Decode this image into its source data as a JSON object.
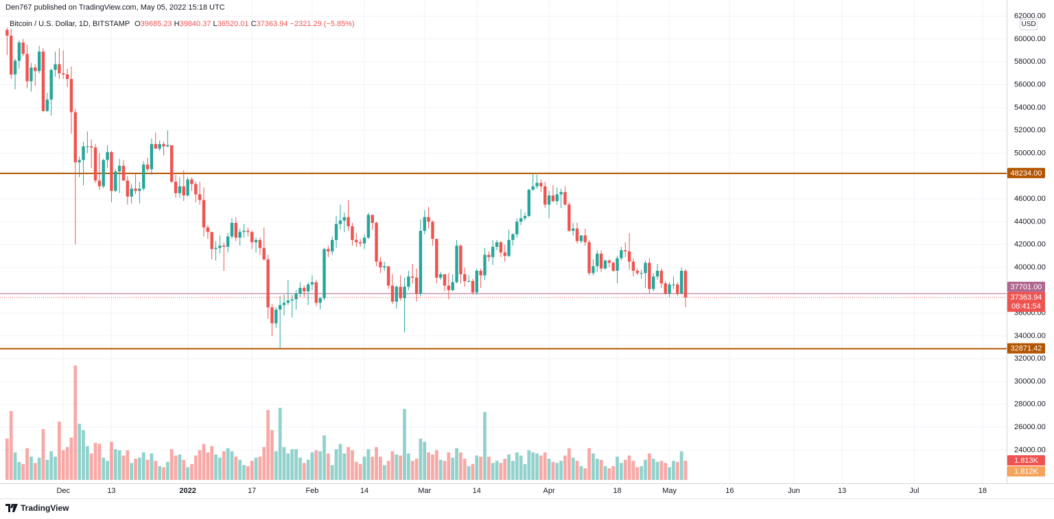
{
  "header": {
    "published": "Den767 published on TradingView.com, May 05, 2022 15:18 UTC"
  },
  "chart_data": {
    "type": "candlestick",
    "symbol": "Bitcoin / U.S. Dollar, 1D, BITSTAMP",
    "legend_letters": {
      "open": "O",
      "high": "H",
      "low": "L",
      "close": "C"
    },
    "change": {
      "value": -2321.29,
      "label": "−2321.29"
    },
    "change_percent": {
      "value": -5.85,
      "label": "(−5.85%)"
    },
    "currency": "USD",
    "countdown": "08:41:54",
    "up_color": "#26a69a",
    "down_color": "#ef5350",
    "grid": true,
    "open": [
      60800,
      60300,
      56900,
      58100,
      59700,
      58700,
      56300,
      57500,
      57200,
      58900,
      53700,
      54700,
      57300,
      57800,
      57000,
      56900,
      56500,
      53600,
      49200,
      49400,
      50600,
      50600,
      50500,
      47600,
      47100,
      49400,
      50100,
      46700,
      48400,
      48900,
      47600,
      46200,
      46900,
      46700,
      46900,
      49000,
      48600,
      50800,
      50400,
      50800,
      50600,
      50700,
      47500,
      46500,
      47100,
      46300,
      47700,
      47300,
      46400,
      45900,
      43500,
      43100,
      41600,
      41700,
      41900,
      41800,
      42700,
      43900,
      42600,
      43100,
      43200,
      43100,
      42200,
      42400,
      41700,
      40700,
      36500,
      35100,
      36300,
      36700,
      36900,
      37100,
      37200,
      37700,
      38200,
      37900,
      38500,
      38700,
      36900,
      37300,
      41600,
      41400,
      42400,
      43800,
      44100,
      44400,
      43600,
      42400,
      42200,
      42100,
      42600,
      44600,
      43900,
      40500,
      40000,
      40100,
      38400,
      37000,
      38300,
      37300,
      38300,
      39200,
      39100,
      37700,
      43200,
      44400,
      44000,
      42500,
      39100,
      39400,
      38400,
      38000,
      38700,
      41900,
      39400,
      38800,
      38800,
      37800,
      39700,
      39300,
      41100,
      40900,
      41800,
      42200,
      41300,
      41000,
      42400,
      42900,
      44000,
      44300,
      44500,
      46800,
      47100,
      47400,
      47100,
      45500,
      46300,
      45800,
      46400,
      46600,
      45500,
      43200,
      43400,
      42300,
      42800,
      42200,
      39500,
      40100,
      41200,
      39900,
      40600,
      40400,
      39700,
      40800,
      41500,
      41400,
      40500,
      39700,
      39500,
      39500,
      40400,
      38100,
      39200,
      39700,
      38600,
      37700,
      38500,
      38500,
      37700,
      39685.23
    ],
    "high": [
      61000,
      60900,
      58300,
      59900,
      60000,
      59500,
      57900,
      57800,
      59400,
      59200,
      55300,
      57400,
      58900,
      59200,
      59000,
      57400,
      57600,
      53900,
      49700,
      51000,
      51900,
      51200,
      50800,
      50000,
      49500,
      50700,
      50200,
      48600,
      49500,
      49400,
      48000,
      47300,
      48300,
      47500,
      49300,
      49600,
      51300,
      51800,
      51100,
      51000,
      52000,
      50700,
      48100,
      47900,
      48500,
      47900,
      47900,
      47500,
      47500,
      47000,
      43700,
      43100,
      42300,
      42800,
      42200,
      43000,
      44300,
      44400,
      43400,
      43800,
      43500,
      43200,
      42600,
      42600,
      43500,
      41100,
      36800,
      36500,
      37500,
      37600,
      38900,
      37600,
      38000,
      38700,
      38400,
      38700,
      39300,
      38900,
      37400,
      41700,
      41900,
      42700,
      44500,
      45500,
      44800,
      45900,
      43900,
      43000,
      42500,
      42900,
      44800,
      44600,
      44000,
      40900,
      40500,
      40100,
      39400,
      38400,
      39300,
      39100,
      39700,
      40300,
      39900,
      44200,
      45000,
      45300,
      44100,
      42500,
      39600,
      39400,
      39500,
      39400,
      42400,
      42000,
      40000,
      39300,
      39000,
      39900,
      39900,
      41700,
      41400,
      42400,
      42400,
      42300,
      42000,
      43300,
      43000,
      44300,
      45100,
      44800,
      46900,
      48200,
      48100,
      47700,
      47500,
      46700,
      47200,
      47000,
      46900,
      47100,
      45700,
      43900,
      43900,
      42800,
      43400,
      42400,
      40700,
      41500,
      41500,
      40700,
      40700,
      40500,
      41000,
      41800,
      42200,
      43000,
      40800,
      39900,
      39800,
      40600,
      40800,
      39500,
      40300,
      39900,
      38800,
      38700,
      39200,
      38700,
      40000,
      39840.37
    ],
    "low": [
      58600,
      56500,
      55600,
      57400,
      58500,
      55700,
      55400,
      55900,
      57000,
      53600,
      53600,
      53300,
      56700,
      56500,
      56500,
      55800,
      51700,
      42000,
      47900,
      47200,
      50000,
      48700,
      47400,
      46800,
      46900,
      48700,
      45700,
      46600,
      46500,
      47600,
      45500,
      45600,
      46400,
      45600,
      46700,
      48400,
      48100,
      50400,
      50200,
      49800,
      50500,
      47400,
      46100,
      46100,
      45800,
      46200,
      46700,
      45700,
      45500,
      42700,
      42500,
      40700,
      40600,
      41200,
      39700,
      41300,
      42500,
      42300,
      41900,
      42600,
      42700,
      41600,
      41300,
      41100,
      40600,
      35500,
      34000,
      34700,
      32900,
      35800,
      36700,
      35600,
      36300,
      37400,
      37400,
      36700,
      38000,
      36600,
      36300,
      37100,
      40900,
      41100,
      41700,
      43300,
      43100,
      43200,
      41900,
      41800,
      41800,
      41600,
      42500,
      43300,
      40100,
      39500,
      39700,
      38100,
      36800,
      36400,
      37100,
      34300,
      38000,
      38600,
      37000,
      37500,
      42900,
      43400,
      41900,
      38600,
      38900,
      37900,
      37200,
      37900,
      38600,
      38600,
      38300,
      38700,
      37600,
      37600,
      38200,
      38900,
      40500,
      40200,
      41500,
      40900,
      40500,
      40900,
      41900,
      42600,
      43700,
      44100,
      44400,
      46700,
      46900,
      46600,
      45200,
      44300,
      45700,
      45500,
      45200,
      45400,
      43100,
      42800,
      42100,
      42100,
      41900,
      39300,
      39300,
      39600,
      39600,
      39800,
      40000,
      39600,
      38600,
      40600,
      40900,
      39800,
      39200,
      39300,
      39000,
      38200,
      37700,
      37900,
      38900,
      38200,
      37600,
      37400,
      38100,
      37500,
      37700,
      36520.01
    ],
    "close": [
      60300,
      56900,
      58100,
      59700,
      58700,
      56300,
      57500,
      57200,
      58900,
      53700,
      54700,
      57300,
      57800,
      57000,
      56900,
      56500,
      53600,
      49200,
      49400,
      50600,
      50600,
      50500,
      47600,
      47100,
      49400,
      50100,
      46700,
      48400,
      48900,
      47600,
      46200,
      46900,
      46700,
      46900,
      49000,
      48600,
      50800,
      50400,
      50800,
      50600,
      50700,
      47500,
      46500,
      47100,
      46300,
      47700,
      47300,
      46400,
      45900,
      43500,
      43100,
      41600,
      41700,
      41900,
      41800,
      42700,
      43900,
      42600,
      43100,
      43200,
      43100,
      42200,
      42400,
      41700,
      40700,
      36500,
      35100,
      36300,
      36700,
      36900,
      37100,
      37200,
      37700,
      38200,
      37900,
      38500,
      38700,
      36900,
      37300,
      41600,
      41400,
      42400,
      43800,
      44100,
      44400,
      43600,
      42400,
      42200,
      42100,
      42600,
      44600,
      43900,
      40500,
      40000,
      40100,
      38400,
      37000,
      38300,
      37300,
      38300,
      39200,
      39100,
      37700,
      43200,
      44400,
      44000,
      42500,
      39100,
      39400,
      38400,
      38000,
      38700,
      41900,
      39400,
      38800,
      38800,
      37800,
      39700,
      39300,
      41100,
      40900,
      41800,
      42200,
      41300,
      41000,
      42400,
      42900,
      44000,
      44300,
      44500,
      46800,
      47100,
      47400,
      47100,
      45500,
      46300,
      45800,
      46400,
      46600,
      45500,
      43200,
      43400,
      42300,
      42800,
      42200,
      39500,
      40100,
      41200,
      39900,
      40600,
      40400,
      39700,
      40800,
      41500,
      41400,
      40500,
      39700,
      39500,
      39500,
      40400,
      38100,
      39200,
      39700,
      38600,
      37700,
      38500,
      38500,
      37700,
      39700,
      37363.94
    ],
    "volume": [
      3900,
      6500,
      2600,
      1700,
      1500,
      3000,
      2200,
      1600,
      2100,
      4800,
      1900,
      2700,
      2200,
      5500,
      2800,
      3100,
      4000,
      10800,
      5300,
      4700,
      3200,
      2500,
      3500,
      3400,
      2100,
      1800,
      3600,
      2900,
      2800,
      2300,
      2800,
      1600,
      2000,
      2100,
      2600,
      1900,
      2500,
      1800,
      1300,
      1200,
      1700,
      2900,
      2300,
      2400,
      1900,
      1200,
      1500,
      2300,
      2800,
      3400,
      2600,
      3200,
      2400,
      2100,
      2700,
      3000,
      2700,
      2200,
      1900,
      1400,
      1300,
      1800,
      2100,
      2200,
      3100,
      6600,
      4700,
      2700,
      6800,
      3100,
      2500,
      2900,
      2900,
      2100,
      1600,
      1900,
      2600,
      2800,
      2700,
      4200,
      2500,
      1400,
      2900,
      3400,
      2500,
      3100,
      2800,
      1700,
      1500,
      2200,
      2900,
      2200,
      3100,
      2200,
      1400,
      1800,
      2700,
      2400,
      2300,
      6700,
      2500,
      1800,
      2000,
      3900,
      3600,
      2600,
      2400,
      2800,
      1900,
      1800,
      2600,
      2100,
      3000,
      2600,
      2000,
      1300,
      1500,
      2300,
      2200,
      6400,
      2200,
      1600,
      1800,
      1600,
      2000,
      2400,
      1800,
      2600,
      2300,
      1500,
      2800,
      2600,
      2500,
      2300,
      2600,
      2000,
      1700,
      1600,
      1800,
      2300,
      3000,
      2100,
      1800,
      1300,
      1100,
      3000,
      2500,
      2000,
      1900,
      1300,
      1100,
      1300,
      2200,
      1600,
      1900,
      2300,
      1800,
      1200,
      1300,
      1900,
      2500,
      2000,
      1700,
      1800,
      1600,
      1200,
      1800,
      1700,
      2700,
      1813
    ],
    "xlim": [
      -0.4,
      249
    ],
    "xticks": [
      {
        "value": 14,
        "label": "Dec"
      },
      {
        "value": 26,
        "label": "13"
      },
      {
        "value": 45,
        "label": "2022"
      },
      {
        "value": 61,
        "label": "17"
      },
      {
        "value": 76,
        "label": "Feb"
      },
      {
        "value": 89,
        "label": "14"
      },
      {
        "value": 104,
        "label": "Mar"
      },
      {
        "value": 117,
        "label": "14"
      },
      {
        "value": 135,
        "label": "Apr"
      },
      {
        "value": 152,
        "label": "18"
      },
      {
        "value": 165,
        "label": "May"
      },
      {
        "value": 180,
        "label": "16"
      },
      {
        "value": 196,
        "label": "Jun"
      },
      {
        "value": 208,
        "label": "13"
      },
      {
        "value": 226,
        "label": "Jul"
      },
      {
        "value": 243,
        "label": "18"
      }
    ],
    "ylim": [
      21080,
      63120
    ],
    "yticks": [
      {
        "value": 24000,
        "label": "24000.00"
      },
      {
        "value": 26000,
        "label": "26000.00"
      },
      {
        "value": 28000,
        "label": "28000.00"
      },
      {
        "value": 30000,
        "label": "30000.00"
      },
      {
        "value": 32000,
        "label": "32000.00"
      },
      {
        "value": 34000,
        "label": "34000.00"
      },
      {
        "value": 36000,
        "label": "36000.00"
      },
      {
        "value": 40000,
        "label": "40000.00"
      },
      {
        "value": 42000,
        "label": "42000.00"
      },
      {
        "value": 44000,
        "label": "44000.00"
      },
      {
        "value": 46000,
        "label": "46000.00"
      },
      {
        "value": 50000,
        "label": "50000.00"
      },
      {
        "value": 52000,
        "label": "52000.00"
      },
      {
        "value": 54000,
        "label": "54000.00"
      },
      {
        "value": 56000,
        "label": "56000.00"
      },
      {
        "value": 58000,
        "label": "58000.00"
      },
      {
        "value": 60000,
        "label": "60000.00"
      },
      {
        "value": 62000,
        "label": "62000.00"
      }
    ],
    "vlim": [
      0,
      11000
    ],
    "hlines": [
      {
        "value": 48234,
        "label": "48234.00",
        "color": "#b35400"
      },
      {
        "value": 32871.42,
        "color": "#b35400"
      },
      {
        "value": 37701,
        "label": "37701.00",
        "color": "#b0678f"
      }
    ],
    "volume_badges": [
      {
        "value": 1813,
        "label": "1.813K",
        "color": "#ef5350"
      },
      {
        "value": 1812,
        "label": "1.812K",
        "color": "#f7a35c"
      }
    ]
  },
  "footer": {
    "brand": "TradingView"
  }
}
